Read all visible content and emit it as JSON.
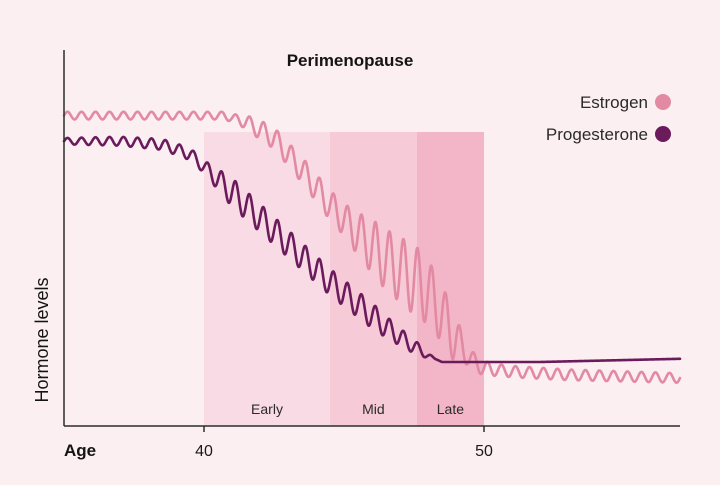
{
  "chart_data": {
    "type": "line",
    "title": "Perimenopause",
    "xlabel": "Age",
    "ylabel": "Hormone levels",
    "xlim": [
      35,
      57
    ],
    "ylim": [
      0,
      100
    ],
    "xticks": [
      40,
      50
    ],
    "phases": [
      {
        "label": "Early",
        "start": 40,
        "end": 44.5,
        "color": "#f8dbe4"
      },
      {
        "label": "Mid",
        "start": 44.5,
        "end": 47.6,
        "color": "#f6cad7"
      },
      {
        "label": "Late",
        "start": 47.6,
        "end": 50,
        "color": "#f3b5c8"
      }
    ],
    "series": [
      {
        "name": "Estrogen",
        "color": "#e38aa3",
        "points": [
          [
            35,
            92
          ],
          [
            39,
            92
          ],
          [
            40.7,
            92
          ],
          [
            41.5,
            90
          ],
          [
            42.5,
            85
          ],
          [
            43.5,
            75
          ],
          [
            44.5,
            64
          ],
          [
            45.5,
            55
          ],
          [
            46.5,
            47
          ],
          [
            47.3,
            42
          ],
          [
            48,
            37
          ],
          [
            48.5,
            30
          ],
          [
            49,
            22
          ],
          [
            49.5,
            16
          ],
          [
            50,
            13
          ],
          [
            51,
            12
          ],
          [
            53,
            11
          ],
          [
            57,
            10
          ]
        ],
        "wiggles": [
          [
            35,
            1.2
          ],
          [
            41,
            1.2
          ],
          [
            42,
            3
          ],
          [
            45,
            5
          ],
          [
            46.2,
            9
          ],
          [
            47.6,
            11
          ],
          [
            48.9,
            8
          ],
          [
            49.4,
            3
          ],
          [
            50.5,
            1.8
          ],
          [
            57,
            1.5
          ]
        ]
      },
      {
        "name": "Progesterone",
        "color": "#6b1a5c",
        "points": [
          [
            35,
            84
          ],
          [
            37,
            84
          ],
          [
            38.5,
            83
          ],
          [
            39.5,
            80
          ],
          [
            40.5,
            72
          ],
          [
            41.5,
            64
          ],
          [
            42.5,
            56
          ],
          [
            43.5,
            48
          ],
          [
            44.5,
            40
          ],
          [
            45.5,
            33
          ],
          [
            46.5,
            26
          ],
          [
            47.3,
            21
          ],
          [
            48,
            17
          ],
          [
            48.5,
            15
          ],
          [
            49,
            15
          ],
          [
            52,
            15
          ],
          [
            57,
            16
          ]
        ],
        "wiggles": [
          [
            35,
            1
          ],
          [
            40,
            2
          ],
          [
            41,
            4.5
          ],
          [
            46,
            4
          ],
          [
            47.6,
            2
          ],
          [
            48.3,
            0
          ],
          [
            57,
            0
          ]
        ]
      }
    ]
  }
}
